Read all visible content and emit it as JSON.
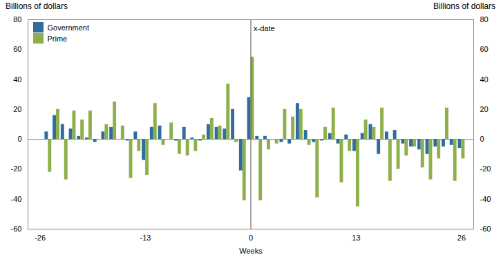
{
  "chart_data": {
    "type": "bar",
    "x": [
      -26,
      -25,
      -24,
      -23,
      -22,
      -21,
      -20,
      -19,
      -18,
      -17,
      -16,
      -15,
      -14,
      -13,
      -12,
      -11,
      -10,
      -9,
      -8,
      -7,
      -6,
      -5,
      -4,
      -3,
      -2,
      -1,
      0,
      1,
      2,
      3,
      4,
      5,
      6,
      7,
      8,
      9,
      10,
      11,
      12,
      13,
      14,
      15,
      16,
      17,
      18,
      19,
      20,
      21,
      22,
      23,
      24,
      25,
      26
    ],
    "series": [
      {
        "name": "Government",
        "color": "#2e6d9e",
        "values": [
          0,
          5,
          16,
          10,
          7,
          2,
          1,
          -2,
          5,
          8,
          0,
          -1,
          5,
          -14,
          8,
          9,
          0,
          -1,
          8,
          1,
          -1,
          10,
          8,
          7,
          20,
          -21,
          28,
          2,
          2,
          0,
          -2,
          -3,
          24,
          6,
          -2,
          -1,
          4,
          -3,
          3,
          -8,
          4,
          10,
          -10,
          5,
          6,
          -3,
          -5,
          -7,
          -10,
          -5,
          -5,
          -4,
          -6
        ]
      },
      {
        "name": "Prime",
        "color": "#8db04a",
        "values": [
          0,
          -22,
          20,
          -27,
          19,
          13,
          19,
          0,
          10,
          25,
          9,
          -26,
          -8,
          -24,
          24,
          -4,
          11,
          -10,
          -11,
          -8,
          3,
          14,
          9,
          37,
          -2,
          -41,
          55,
          -41,
          -7,
          -3,
          20,
          15,
          20,
          -4,
          -39,
          8,
          21,
          -29,
          -8,
          -45,
          13,
          8,
          21,
          -28,
          -20,
          -11,
          -5,
          -19,
          -27,
          -13,
          21,
          -28,
          -13
        ]
      }
    ],
    "xlabel": "Weeks",
    "ylabel": "Billions of dollars",
    "y2label": "Billions of dollars",
    "xlim": [
      -27.5,
      27.5
    ],
    "xticks": [
      -26,
      -13,
      0,
      13,
      26
    ],
    "ylim": [
      -60,
      80
    ],
    "yticks": [
      -60,
      -40,
      -20,
      0,
      20,
      40,
      60,
      80
    ],
    "y2lim": [
      -60,
      80
    ],
    "y2ticks": [
      -60,
      -40,
      -20,
      0,
      20,
      40,
      60,
      80
    ],
    "annotations": [
      {
        "text": "x-date",
        "x": 0,
        "y": 76
      }
    ],
    "legend": "upper left",
    "grid": false
  }
}
